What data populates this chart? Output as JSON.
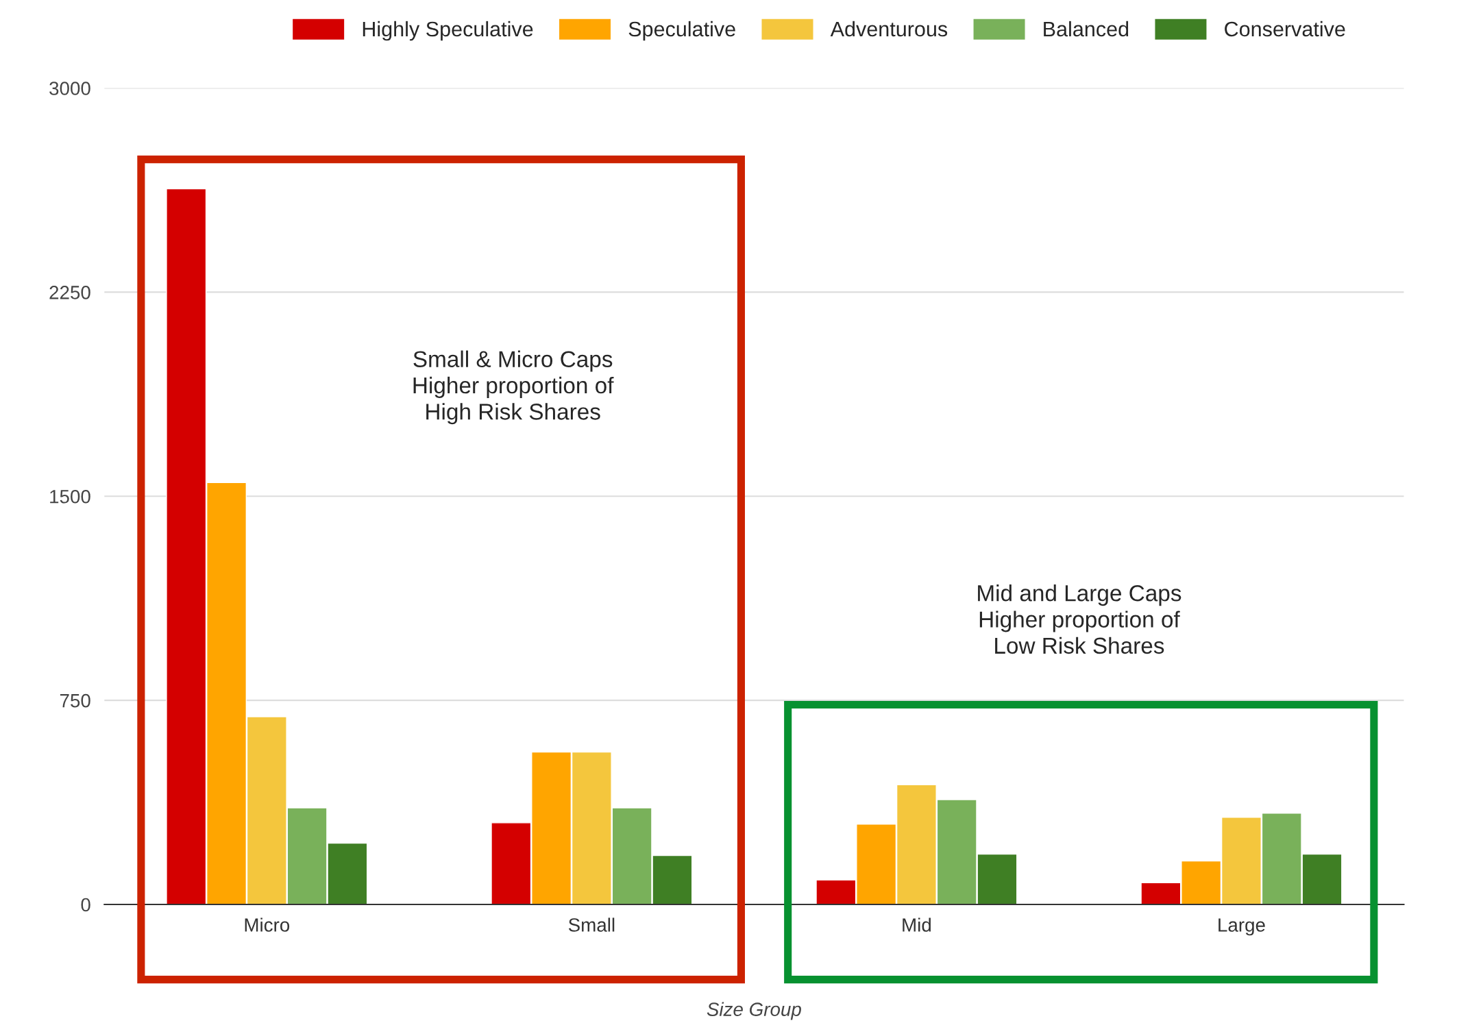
{
  "chart_data": {
    "type": "bar",
    "xlabel": "Size Group",
    "categories": [
      "Micro",
      "Small",
      "Mid",
      "Large"
    ],
    "series": [
      {
        "name": "Highly Speculative",
        "color": "#d40000",
        "values": [
          2630,
          300,
          90,
          80
        ]
      },
      {
        "name": "Speculative",
        "color": "#ffa500",
        "values": [
          1550,
          560,
          295,
          160
        ]
      },
      {
        "name": "Adventurous",
        "color": "#f4c63d",
        "values": [
          690,
          560,
          440,
          320
        ]
      },
      {
        "name": "Balanced",
        "color": "#79b15a",
        "values": [
          355,
          355,
          385,
          335
        ]
      },
      {
        "name": "Conservative",
        "color": "#3f7f24",
        "values": [
          225,
          180,
          185,
          185
        ]
      }
    ],
    "annotations": [
      "Small & Micro Caps\nHigher proportion of\nHigh Risk Shares",
      "Mid and Large Caps\nHigher proportion of\nLow Risk Shares"
    ],
    "ylim": [
      0,
      3000
    ],
    "yticks": [
      0,
      750,
      1500,
      2250,
      3000
    ],
    "grid": "y",
    "legend": "top"
  }
}
